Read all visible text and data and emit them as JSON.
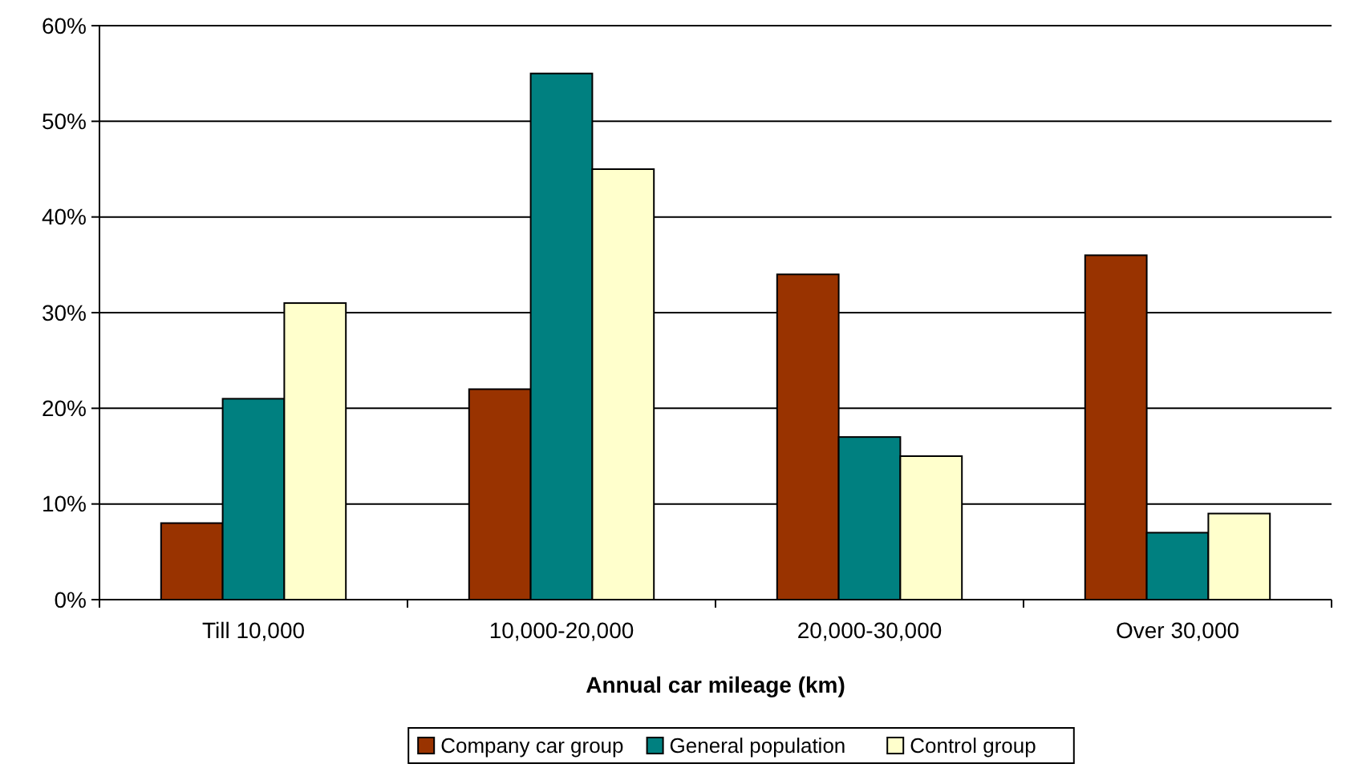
{
  "chart_data": {
    "type": "bar",
    "xlabel": "Annual car mileage (km)",
    "categories": [
      "Till 10,000",
      "10,000-20,000",
      "20,000-30,000",
      "Over 30,000"
    ],
    "series": [
      {
        "name": "Company car group",
        "color": "#993300",
        "values": [
          8,
          22,
          34,
          36
        ]
      },
      {
        "name": "General population",
        "color": "#008080",
        "values": [
          21,
          55,
          17,
          7
        ]
      },
      {
        "name": "Control group",
        "color": "#ffffcc",
        "values": [
          31,
          45,
          15,
          9
        ]
      }
    ],
    "ylim": [
      0,
      60
    ],
    "yticks": [
      {
        "value": 0,
        "label": "0%"
      },
      {
        "value": 10,
        "label": "10%"
      },
      {
        "value": 20,
        "label": "20%"
      },
      {
        "value": 30,
        "label": "30%"
      },
      {
        "value": 40,
        "label": "40%"
      },
      {
        "value": 50,
        "label": "50%"
      },
      {
        "value": 60,
        "label": "60%"
      }
    ],
    "grid": "y",
    "legend": "bottom"
  }
}
